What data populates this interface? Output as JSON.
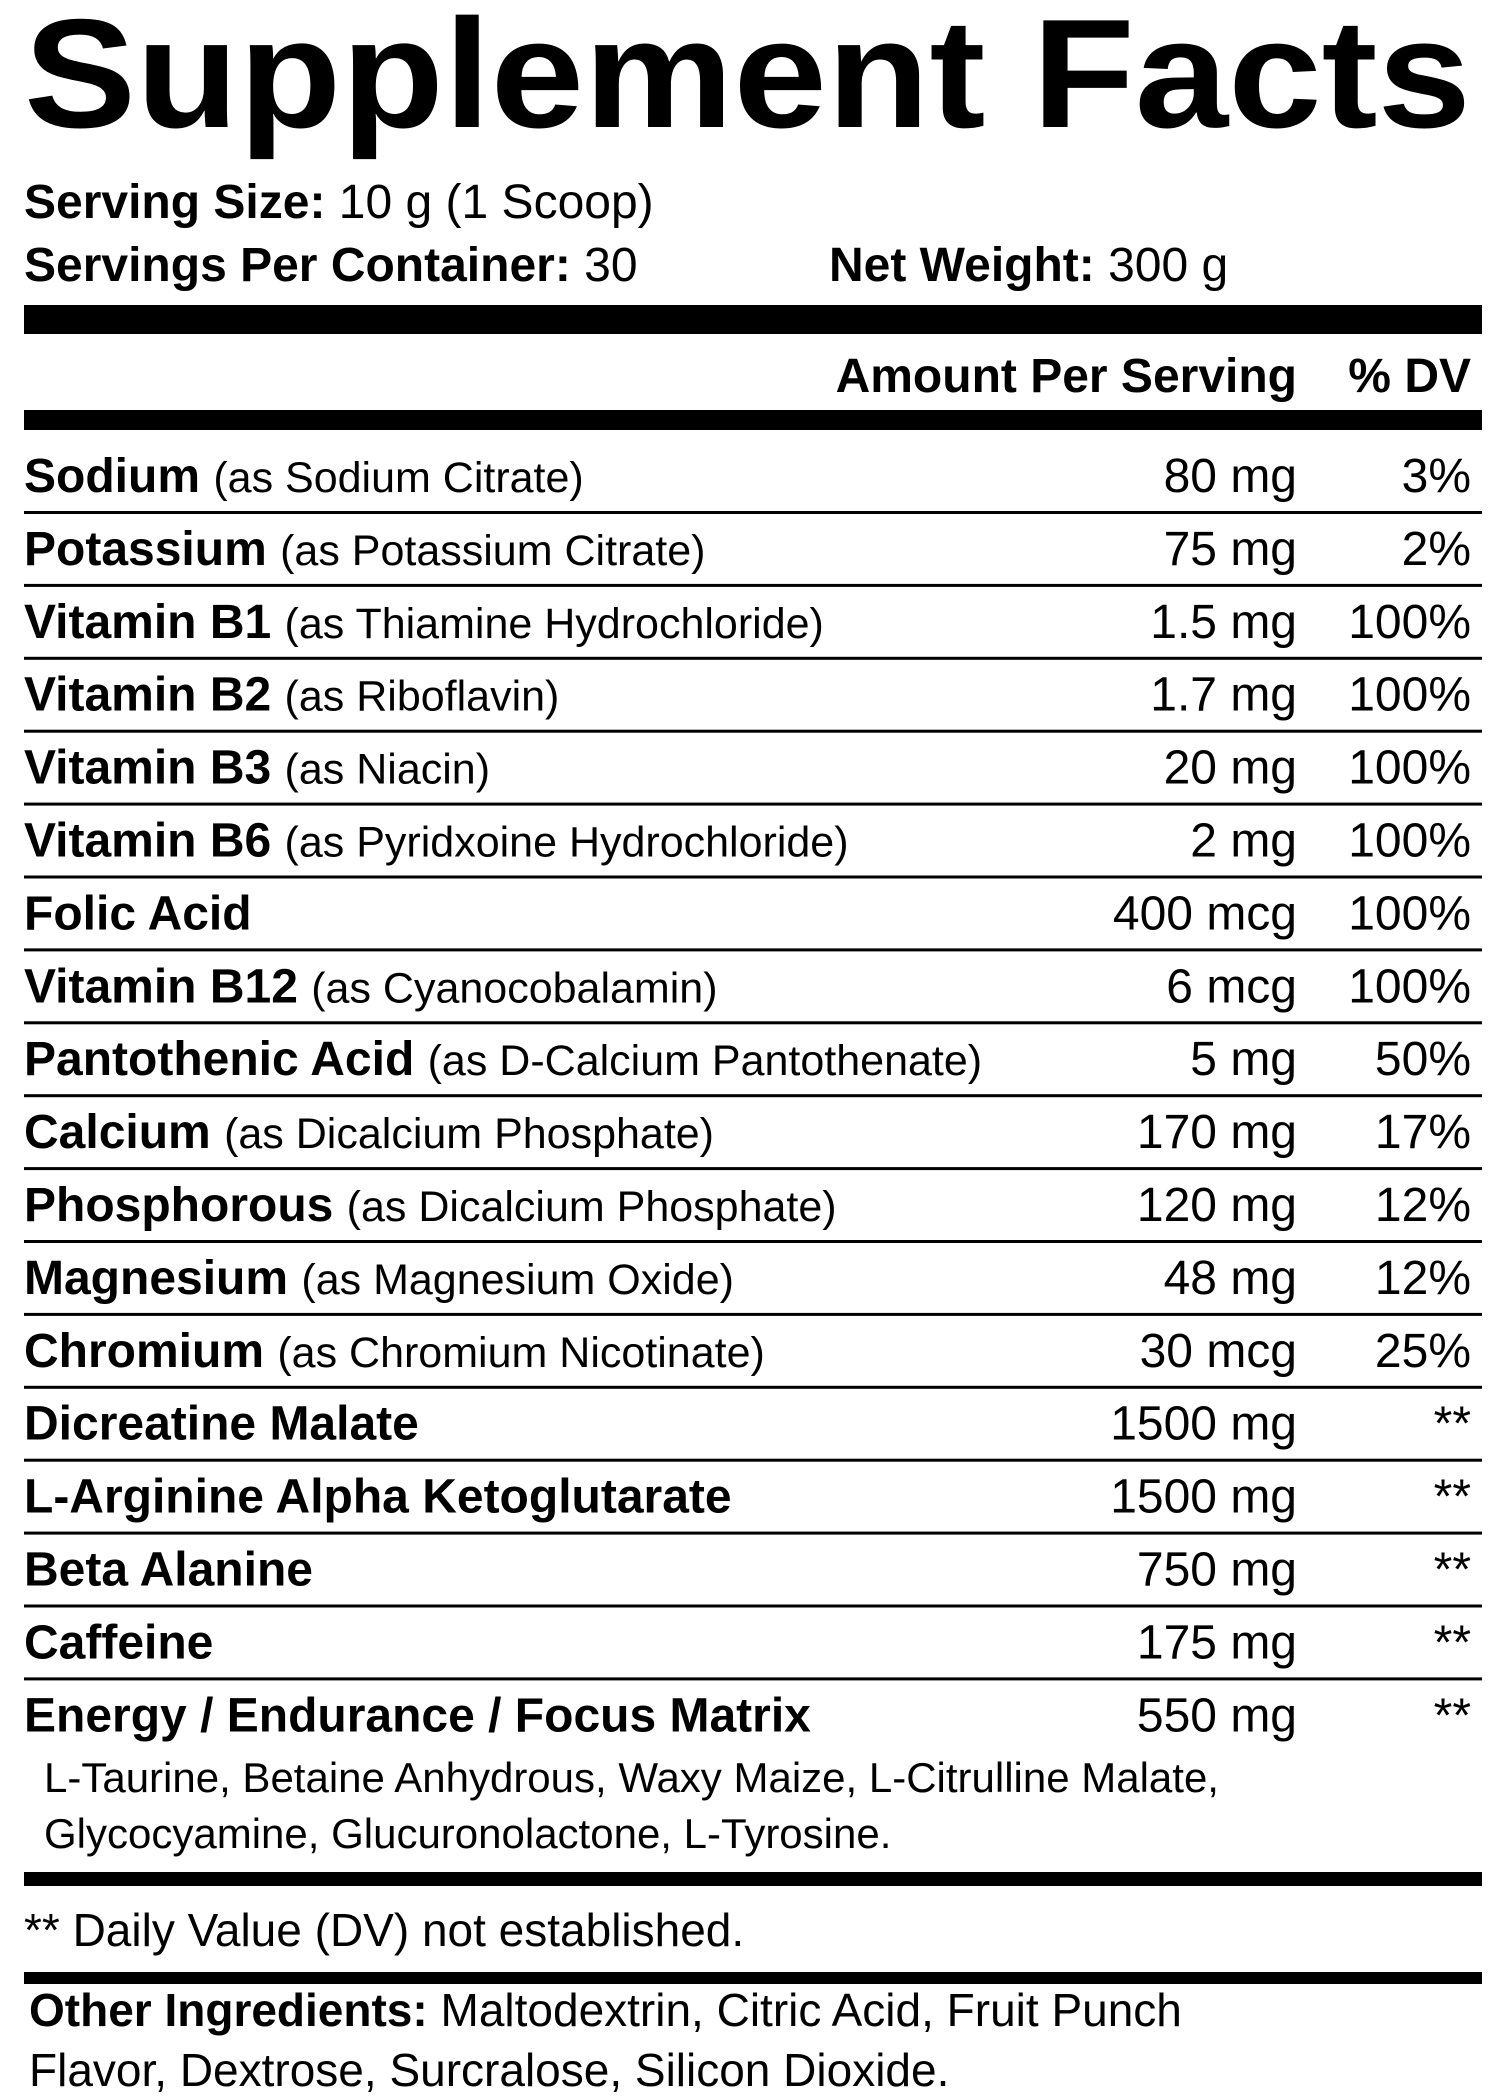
{
  "header": {
    "title": "Supplement Facts",
    "serving_size": {
      "label": "Serving Size:",
      "value": "10 g (1 Scoop)"
    },
    "servings_per_container": {
      "label": "Servings Per Container:",
      "value": "30"
    },
    "net_weight": {
      "label": "Net Weight:",
      "value": "300 g"
    }
  },
  "table": {
    "columns": [
      "Amount Per Serving",
      "% DV"
    ],
    "rows": [
      {
        "name": "Sodium",
        "note": "(as Sodium Citrate)",
        "amount": "80 mg",
        "dv": "3%"
      },
      {
        "name": "Potassium",
        "note": "(as Potassium Citrate)",
        "amount": "75 mg",
        "dv": "2%"
      },
      {
        "name": "Vitamin B1",
        "note": "(as Thiamine Hydrochloride)",
        "amount": "1.5 mg",
        "dv": "100%"
      },
      {
        "name": "Vitamin B2",
        "note": "(as Riboflavin)",
        "amount": "1.7 mg",
        "dv": "100%"
      },
      {
        "name": "Vitamin B3",
        "note": "(as Niacin)",
        "amount": "20 mg",
        "dv": "100%"
      },
      {
        "name": "Vitamin B6",
        "note": "(as Pyridxoine Hydrochloride)",
        "amount": "2 mg",
        "dv": "100%"
      },
      {
        "name": "Folic Acid",
        "amount": "400 mcg",
        "dv": "100%"
      },
      {
        "name": "Vitamin B12",
        "note": "(as Cyanocobalamin)",
        "amount": "6 mcg",
        "dv": "100%"
      },
      {
        "name": "Pantothenic Acid",
        "note": "(as D-Calcium Pantothenate)",
        "amount": "5 mg",
        "dv": "50%"
      },
      {
        "name": "Calcium",
        "note": "(as Dicalcium Phosphate)",
        "amount": "170 mg",
        "dv": "17%"
      },
      {
        "name": "Phosphorous",
        "note": "(as Dicalcium Phosphate)",
        "amount": "120 mg",
        "dv": "12%"
      },
      {
        "name": "Magnesium",
        "note": "(as Magnesium Oxide)",
        "amount": "48 mg",
        "dv": "12%"
      },
      {
        "name": "Chromium",
        "note": "(as Chromium Nicotinate)",
        "amount": "30 mcg",
        "dv": "25%"
      },
      {
        "name": "Dicreatine Malate",
        "amount": "1500 mg",
        "dv": "**"
      },
      {
        "name": "L-Arginine Alpha Ketoglutarate",
        "amount": "1500 mg",
        "dv": "**"
      },
      {
        "name": "Beta Alanine",
        "amount": "750 mg",
        "dv": "**"
      },
      {
        "name": "Caffeine",
        "amount": "175 mg",
        "dv": "**"
      },
      {
        "name": "Energy / Endurance / Focus Matrix",
        "amount": "550 mg",
        "dv": "**"
      }
    ],
    "matrix_ingredients": [
      "L-Taurine, Betaine Anhydrous, Waxy Maize, L-Citrulline Malate,",
      "Glycocyamine, Glucuronolactone, L-Tyrosine."
    ]
  },
  "footnote": "** Daily Value (DV) not established.",
  "other_ingredients": {
    "label": "Other Ingredients:",
    "lines": [
      "Maltodextrin, Citric Acid, Fruit Punch",
      "Flavor, Dextrose, Surcralose, Silicon Dioxide."
    ]
  }
}
